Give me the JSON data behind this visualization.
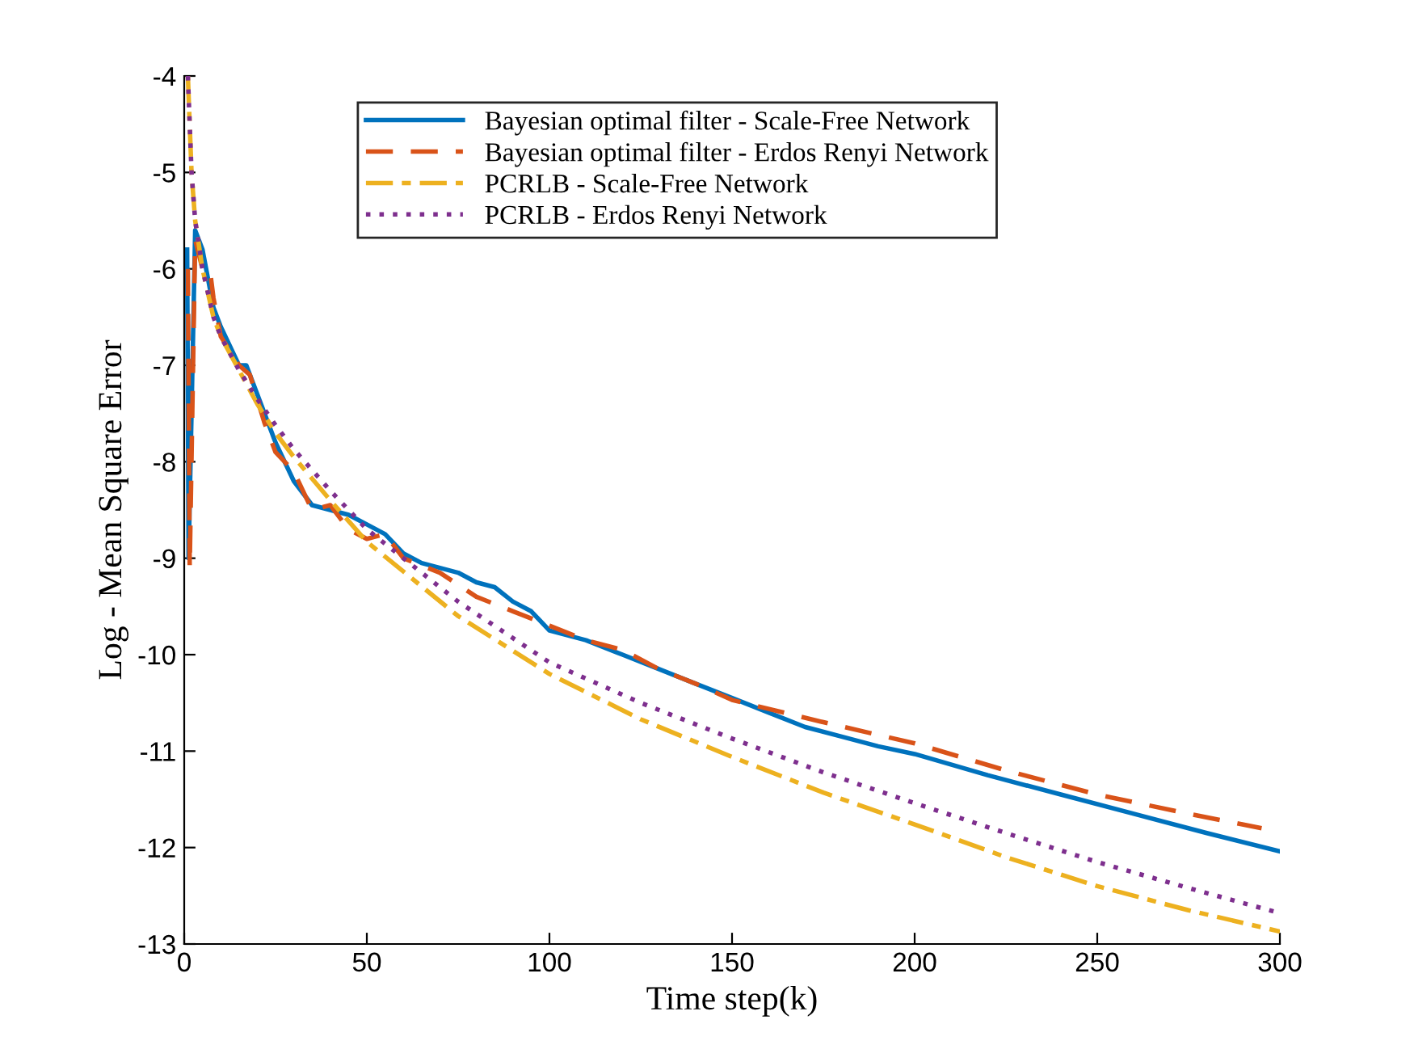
{
  "chart_data": {
    "type": "line",
    "xlabel": "Time step(k)",
    "ylabel": "Log - Mean Square Error",
    "xlim": [
      0,
      300
    ],
    "ylim": [
      -13,
      -4
    ],
    "xticks": [
      0,
      50,
      100,
      150,
      200,
      250,
      300
    ],
    "yticks": [
      -13,
      -12,
      -11,
      -10,
      -9,
      -8,
      -7,
      -6,
      -5,
      -4
    ],
    "grid": false,
    "legend": "top",
    "series": [
      {
        "name": "Bayesian optimal filter - Scale-Free Network",
        "color": "#0072bd",
        "line_style": "solid",
        "x": [
          0.8,
          1.2,
          3,
          5,
          8,
          10,
          15,
          17,
          20,
          25,
          30,
          35,
          40,
          45,
          50,
          55,
          60,
          65,
          70,
          75,
          80,
          85,
          90,
          95,
          100,
          110,
          120,
          130,
          140,
          150,
          160,
          170,
          180,
          190,
          200,
          220,
          240,
          260,
          280,
          300
        ],
        "values": [
          -5.8,
          -9.0,
          -5.6,
          -5.8,
          -6.4,
          -6.6,
          -7.0,
          -7.0,
          -7.3,
          -7.8,
          -8.2,
          -8.45,
          -8.5,
          -8.55,
          -8.65,
          -8.75,
          -8.95,
          -9.05,
          -9.1,
          -9.15,
          -9.25,
          -9.3,
          -9.45,
          -9.55,
          -9.75,
          -9.85,
          -10.0,
          -10.15,
          -10.3,
          -10.45,
          -10.6,
          -10.75,
          -10.85,
          -10.95,
          -11.03,
          -11.25,
          -11.45,
          -11.65,
          -11.85,
          -12.04
        ]
      },
      {
        "name": "Bayesian optimal filter - Erdos Renyi Network",
        "color": "#d95319",
        "line_style": "dashed",
        "x": [
          1,
          1.5,
          3,
          5,
          7,
          8,
          10,
          15,
          18,
          22,
          25,
          30,
          35,
          40,
          45,
          50,
          55,
          60,
          70,
          80,
          90,
          100,
          110,
          120,
          130,
          140,
          150,
          175,
          200,
          225,
          250,
          275,
          295
        ],
        "values": [
          -6.0,
          -9.1,
          -5.7,
          -6.0,
          -6.0,
          -6.3,
          -6.7,
          -7.0,
          -7.1,
          -7.6,
          -7.9,
          -8.1,
          -8.5,
          -8.45,
          -8.7,
          -8.8,
          -8.75,
          -9.0,
          -9.15,
          -9.4,
          -9.55,
          -9.7,
          -9.85,
          -9.95,
          -10.15,
          -10.3,
          -10.47,
          -10.7,
          -10.92,
          -11.2,
          -11.45,
          -11.65,
          -11.8
        ]
      },
      {
        "name": "PCRLB - Scale-Free Network",
        "color": "#edb120",
        "line_style": "dashdot",
        "x": [
          1,
          2,
          3,
          5,
          8,
          10,
          15,
          20,
          25,
          30,
          40,
          50,
          75,
          100,
          125,
          150,
          175,
          200,
          225,
          250,
          275,
          300
        ],
        "values": [
          -4.0,
          -5.0,
          -5.5,
          -6.0,
          -6.5,
          -6.7,
          -7.05,
          -7.4,
          -7.7,
          -7.95,
          -8.4,
          -8.83,
          -9.6,
          -10.2,
          -10.67,
          -11.06,
          -11.43,
          -11.76,
          -12.1,
          -12.4,
          -12.65,
          -12.87
        ]
      },
      {
        "name": "PCRLB - Erdos Renyi Network",
        "color": "#7e2f8e",
        "line_style": "dotted",
        "x": [
          1,
          2,
          3,
          5,
          8,
          10,
          15,
          20,
          25,
          30,
          40,
          50,
          75,
          100,
          125,
          150,
          175,
          200,
          225,
          250,
          275,
          300
        ],
        "values": [
          -4.0,
          -5.0,
          -5.5,
          -6.0,
          -6.5,
          -6.7,
          -7.05,
          -7.35,
          -7.62,
          -7.87,
          -8.3,
          -8.7,
          -9.45,
          -10.08,
          -10.5,
          -10.87,
          -11.22,
          -11.54,
          -11.85,
          -12.15,
          -12.42,
          -12.68
        ]
      }
    ]
  }
}
